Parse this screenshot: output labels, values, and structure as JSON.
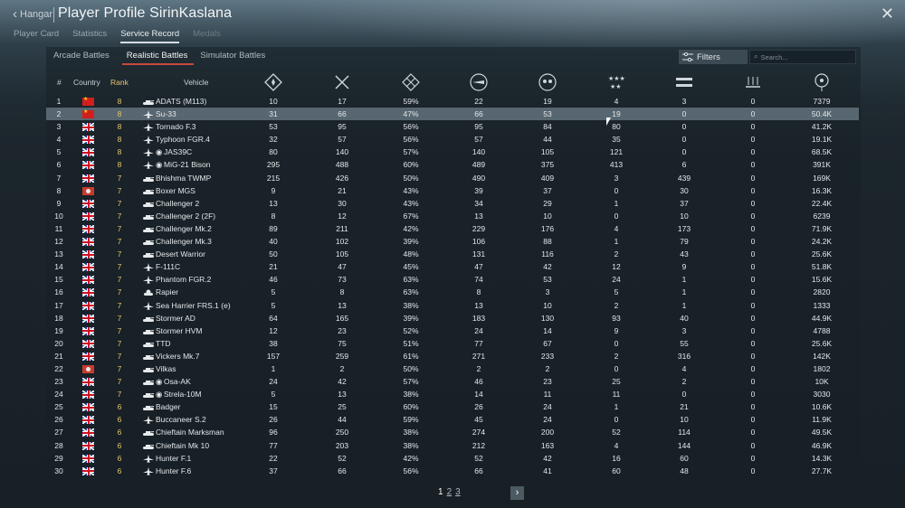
{
  "header": {
    "back_label": "Hangar",
    "title": "Player Profile SirinKaslana",
    "close_icon": "close-icon"
  },
  "tabs": [
    "Player Card",
    "Statistics",
    "Service Record",
    "Medals"
  ],
  "active_tab": "Service Record",
  "subtabs": [
    "Arcade Battles",
    "Realistic Battles",
    "Simulator Battles"
  ],
  "active_subtab": "Realistic Battles",
  "toolbar": {
    "filters_label": "Filters",
    "search_placeholder": "Search..."
  },
  "columns": {
    "index": "#",
    "country": "Country",
    "rank": "Rank",
    "vehicle": "Vehicle",
    "stat_icons": [
      "respawns-icon",
      "battles-icon",
      "victories-icon",
      "air-kills-icon",
      "ground-kills-icon",
      "ship-kills-icon",
      "naval-icon",
      "ai-kills-icon",
      "score-icon"
    ]
  },
  "colors": {
    "rank": "#e9c56d",
    "selected_row": "#576670",
    "accent_underline": "#c84a3c"
  },
  "rows": [
    {
      "n": "1",
      "country": "cn",
      "rank": "8",
      "type": "tank",
      "vehicle": "ADATS (M113)",
      "a": "10",
      "b": "17",
      "c": "59%",
      "d": "22",
      "e": "19",
      "f": "4",
      "g": "3",
      "h": "0",
      "i": "7379"
    },
    {
      "n": "2",
      "country": "cn",
      "rank": "8",
      "type": "jet",
      "vehicle": "Su-33",
      "a": "31",
      "b": "66",
      "c": "47%",
      "d": "66",
      "e": "53",
      "f": "19",
      "g": "0",
      "h": "0",
      "i": "50.4K",
      "selected": true
    },
    {
      "n": "3",
      "country": "uk",
      "rank": "8",
      "type": "jet",
      "vehicle": "Tornado F.3",
      "a": "53",
      "b": "95",
      "c": "56%",
      "d": "95",
      "e": "84",
      "f": "80",
      "g": "0",
      "h": "0",
      "i": "41.2K"
    },
    {
      "n": "4",
      "country": "uk",
      "rank": "8",
      "type": "jet",
      "vehicle": "Typhoon FGR.4",
      "a": "32",
      "b": "57",
      "c": "56%",
      "d": "57",
      "e": "44",
      "f": "35",
      "g": "0",
      "h": "0",
      "i": "19.1K"
    },
    {
      "n": "5",
      "country": "uk",
      "rank": "8",
      "type": "jet",
      "vehicle": "JAS39C",
      "prefix": "◉",
      "a": "80",
      "b": "140",
      "c": "57%",
      "d": "140",
      "e": "105",
      "f": "121",
      "g": "0",
      "h": "0",
      "i": "68.5K"
    },
    {
      "n": "6",
      "country": "uk",
      "rank": "8",
      "type": "jet",
      "vehicle": "MiG-21 Bison",
      "prefix": "◉",
      "a": "295",
      "b": "488",
      "c": "60%",
      "d": "489",
      "e": "375",
      "f": "413",
      "g": "6",
      "h": "0",
      "i": "391K"
    },
    {
      "n": "7",
      "country": "uk",
      "rank": "7",
      "type": "tank",
      "vehicle": "Bhishma TWMP",
      "a": "215",
      "b": "426",
      "c": "50%",
      "d": "490",
      "e": "409",
      "f": "3",
      "g": "439",
      "h": "0",
      "i": "169K"
    },
    {
      "n": "8",
      "country": "ws",
      "rank": "7",
      "type": "tank",
      "vehicle": "Boxer MGS",
      "a": "9",
      "b": "21",
      "c": "43%",
      "d": "39",
      "e": "37",
      "f": "0",
      "g": "30",
      "h": "0",
      "i": "16.3K"
    },
    {
      "n": "9",
      "country": "uk",
      "rank": "7",
      "type": "tank",
      "vehicle": "Challenger 2",
      "a": "13",
      "b": "30",
      "c": "43%",
      "d": "34",
      "e": "29",
      "f": "1",
      "g": "37",
      "h": "0",
      "i": "22.4K"
    },
    {
      "n": "10",
      "country": "uk",
      "rank": "7",
      "type": "tank",
      "vehicle": "Challenger 2 (2F)",
      "a": "8",
      "b": "12",
      "c": "67%",
      "d": "13",
      "e": "10",
      "f": "0",
      "g": "10",
      "h": "0",
      "i": "6239"
    },
    {
      "n": "11",
      "country": "uk",
      "rank": "7",
      "type": "tank",
      "vehicle": "Challenger Mk.2",
      "a": "89",
      "b": "211",
      "c": "42%",
      "d": "229",
      "e": "176",
      "f": "4",
      "g": "173",
      "h": "0",
      "i": "71.9K"
    },
    {
      "n": "12",
      "country": "uk",
      "rank": "7",
      "type": "tank",
      "vehicle": "Challenger Mk.3",
      "a": "40",
      "b": "102",
      "c": "39%",
      "d": "106",
      "e": "88",
      "f": "1",
      "g": "79",
      "h": "0",
      "i": "24.2K"
    },
    {
      "n": "13",
      "country": "uk",
      "rank": "7",
      "type": "tank",
      "vehicle": "Desert Warrior",
      "a": "50",
      "b": "105",
      "c": "48%",
      "d": "131",
      "e": "116",
      "f": "2",
      "g": "43",
      "h": "0",
      "i": "25.6K"
    },
    {
      "n": "14",
      "country": "uk",
      "rank": "7",
      "type": "jet",
      "vehicle": "F-111C",
      "a": "21",
      "b": "47",
      "c": "45%",
      "d": "47",
      "e": "42",
      "f": "12",
      "g": "9",
      "h": "0",
      "i": "51.8K"
    },
    {
      "n": "15",
      "country": "uk",
      "rank": "7",
      "type": "jet",
      "vehicle": "Phantom FGR.2",
      "a": "46",
      "b": "73",
      "c": "63%",
      "d": "74",
      "e": "53",
      "f": "24",
      "g": "1",
      "h": "0",
      "i": "15.6K"
    },
    {
      "n": "16",
      "country": "uk",
      "rank": "7",
      "type": "spaa",
      "vehicle": "Rapier",
      "a": "5",
      "b": "8",
      "c": "63%",
      "d": "8",
      "e": "3",
      "f": "5",
      "g": "1",
      "h": "0",
      "i": "2820"
    },
    {
      "n": "17",
      "country": "uk",
      "rank": "7",
      "type": "jet",
      "vehicle": "Sea Harrier FRS.1 (e)",
      "a": "5",
      "b": "13",
      "c": "38%",
      "d": "13",
      "e": "10",
      "f": "2",
      "g": "1",
      "h": "0",
      "i": "1333"
    },
    {
      "n": "18",
      "country": "uk",
      "rank": "7",
      "type": "tank",
      "vehicle": "Stormer AD",
      "a": "64",
      "b": "165",
      "c": "39%",
      "d": "183",
      "e": "130",
      "f": "93",
      "g": "40",
      "h": "0",
      "i": "44.9K"
    },
    {
      "n": "19",
      "country": "uk",
      "rank": "7",
      "type": "tank",
      "vehicle": "Stormer HVM",
      "a": "12",
      "b": "23",
      "c": "52%",
      "d": "24",
      "e": "14",
      "f": "9",
      "g": "3",
      "h": "0",
      "i": "4788"
    },
    {
      "n": "20",
      "country": "uk",
      "rank": "7",
      "type": "tank",
      "vehicle": "TTD",
      "a": "38",
      "b": "75",
      "c": "51%",
      "d": "77",
      "e": "67",
      "f": "0",
      "g": "55",
      "h": "0",
      "i": "25.6K"
    },
    {
      "n": "21",
      "country": "uk",
      "rank": "7",
      "type": "tank",
      "vehicle": "Vickers Mk.7",
      "a": "157",
      "b": "259",
      "c": "61%",
      "d": "271",
      "e": "233",
      "f": "2",
      "g": "316",
      "h": "0",
      "i": "142K"
    },
    {
      "n": "22",
      "country": "ws",
      "rank": "7",
      "type": "tank",
      "vehicle": "Vilkas",
      "a": "1",
      "b": "2",
      "c": "50%",
      "d": "2",
      "e": "2",
      "f": "0",
      "g": "4",
      "h": "0",
      "i": "1802"
    },
    {
      "n": "23",
      "country": "uk",
      "rank": "7",
      "type": "tank",
      "vehicle": "Osa-AK",
      "prefix": "◉",
      "a": "24",
      "b": "42",
      "c": "57%",
      "d": "46",
      "e": "23",
      "f": "25",
      "g": "2",
      "h": "0",
      "i": "10K"
    },
    {
      "n": "24",
      "country": "uk",
      "rank": "7",
      "type": "tank",
      "vehicle": "Strela-10M",
      "prefix": "◉",
      "a": "5",
      "b": "13",
      "c": "38%",
      "d": "14",
      "e": "11",
      "f": "11",
      "g": "0",
      "h": "0",
      "i": "3030"
    },
    {
      "n": "25",
      "country": "uk",
      "rank": "6",
      "type": "tank",
      "vehicle": "Badger",
      "a": "15",
      "b": "25",
      "c": "60%",
      "d": "26",
      "e": "24",
      "f": "1",
      "g": "21",
      "h": "0",
      "i": "10.6K"
    },
    {
      "n": "26",
      "country": "uk",
      "rank": "6",
      "type": "jet",
      "vehicle": "Buccaneer S.2",
      "a": "26",
      "b": "44",
      "c": "59%",
      "d": "45",
      "e": "24",
      "f": "0",
      "g": "10",
      "h": "0",
      "i": "11.9K"
    },
    {
      "n": "27",
      "country": "uk",
      "rank": "6",
      "type": "tank",
      "vehicle": "Chieftain Marksman",
      "a": "96",
      "b": "250",
      "c": "38%",
      "d": "274",
      "e": "200",
      "f": "52",
      "g": "114",
      "h": "0",
      "i": "49.5K"
    },
    {
      "n": "28",
      "country": "uk",
      "rank": "6",
      "type": "tank",
      "vehicle": "Chieftain Mk 10",
      "a": "77",
      "b": "203",
      "c": "38%",
      "d": "212",
      "e": "163",
      "f": "4",
      "g": "144",
      "h": "0",
      "i": "46.9K"
    },
    {
      "n": "29",
      "country": "uk",
      "rank": "6",
      "type": "jet",
      "vehicle": "Hunter F.1",
      "a": "22",
      "b": "52",
      "c": "42%",
      "d": "52",
      "e": "42",
      "f": "16",
      "g": "60",
      "h": "0",
      "i": "14.3K"
    },
    {
      "n": "30",
      "country": "uk",
      "rank": "6",
      "type": "jet",
      "vehicle": "Hunter F.6",
      "a": "37",
      "b": "66",
      "c": "56%",
      "d": "66",
      "e": "41",
      "f": "60",
      "g": "48",
      "h": "0",
      "i": "27.7K"
    }
  ],
  "pagination": {
    "pages": [
      "1",
      "2",
      "3"
    ],
    "current": "1",
    "next_icon": "chevron-right-icon"
  }
}
